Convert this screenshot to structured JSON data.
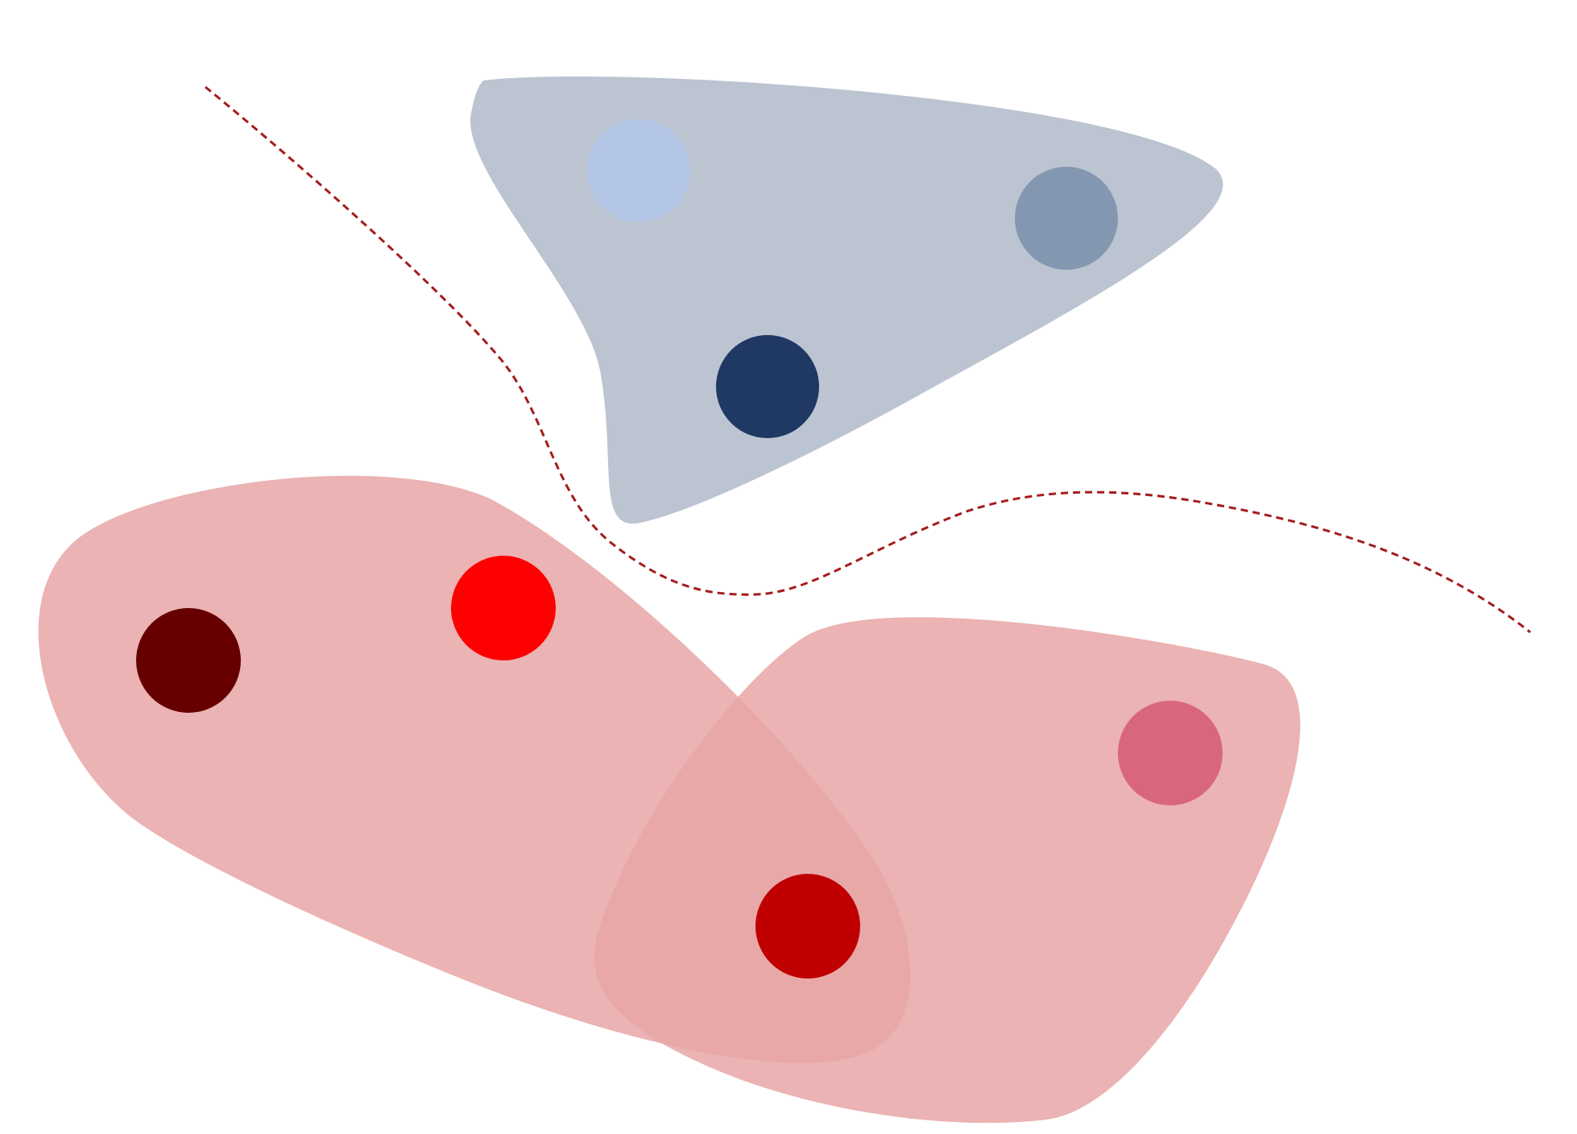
{
  "colors": {
    "background": "#ffffff",
    "blue_region": "#bcc4d1",
    "red_region": "#e8a6a6",
    "red_region_opacity": 0.85,
    "boundary_line": "#a51c1c"
  },
  "regions": [
    {
      "id": "blue-cluster-region",
      "group": "blue"
    },
    {
      "id": "red-cluster-region-left",
      "group": "red"
    },
    {
      "id": "red-cluster-region-right",
      "group": "red"
    }
  ],
  "nodes": [
    {
      "id": "light-blue-node",
      "group": "blue",
      "color": "#b3c6e5"
    },
    {
      "id": "slate-blue-node",
      "group": "blue",
      "color": "#8497b0"
    },
    {
      "id": "navy-node",
      "group": "blue",
      "color": "#203864"
    },
    {
      "id": "dark-maroon-node",
      "group": "red",
      "color": "#660000"
    },
    {
      "id": "bright-red-node",
      "group": "red",
      "color": "#ff0000"
    },
    {
      "id": "crimson-node",
      "group": "red",
      "color": "#c00000"
    },
    {
      "id": "pink-node",
      "group": "red",
      "color": "#d9677b"
    }
  ],
  "boundary": {
    "style": "dashed"
  }
}
